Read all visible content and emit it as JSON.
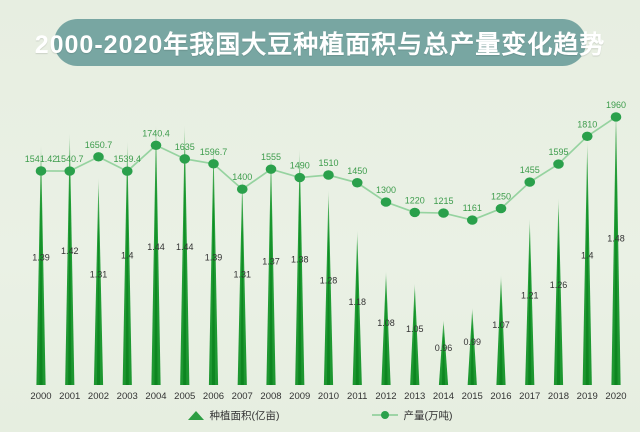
{
  "title": "2000-2020年我国大豆种植面积与总产量变化趋势",
  "colors": {
    "background": "#e9efe3",
    "title_pill": "#78a6a2",
    "title_text": "#ffffff",
    "spike_green": "#23a038",
    "spike_core": "#0e8a22",
    "line_green": "#96d3a0",
    "dot_green": "#2aa04b",
    "line_label_green": "#3d9c4c",
    "bar_label_dark": "#333333",
    "axis_text": "#333333"
  },
  "legend": {
    "items": [
      {
        "label": "种植面积(亿亩)",
        "marker": "triangle"
      },
      {
        "label": "产量(万吨)",
        "marker": "dot-line"
      }
    ]
  },
  "chart_data": {
    "type": "combo",
    "title": "2000-2020年我国大豆种植面积与总产量变化趋势",
    "categories": [
      "2000",
      "2001",
      "2002",
      "2003",
      "2004",
      "2005",
      "2006",
      "2007",
      "2008",
      "2009",
      "2010",
      "2011",
      "2012",
      "2013",
      "2014",
      "2015",
      "2016",
      "2017",
      "2018",
      "2019",
      "2020"
    ],
    "series": [
      {
        "name": "种植面积(亿亩)",
        "type": "spike-bar",
        "unit": "亿亩",
        "values": [
          1.39,
          1.42,
          1.31,
          1.4,
          1.44,
          1.44,
          1.39,
          1.31,
          1.37,
          1.38,
          1.28,
          1.18,
          1.08,
          1.05,
          0.96,
          0.99,
          1.07,
          1.21,
          1.26,
          1.4,
          1.48
        ]
      },
      {
        "name": "产量(万吨)",
        "type": "line",
        "unit": "万吨",
        "values": [
          1541.42,
          1540.7,
          1650.7,
          1539.4,
          1740.4,
          1635,
          1596.7,
          1400,
          1555,
          1490,
          1510,
          1450,
          1300,
          1220,
          1215,
          1161,
          1250,
          1455,
          1595,
          1810,
          1960
        ]
      }
    ],
    "xlabel": "",
    "ylabel": "",
    "grid": false,
    "legend_position": "bottom",
    "value_labels_shown": true
  }
}
